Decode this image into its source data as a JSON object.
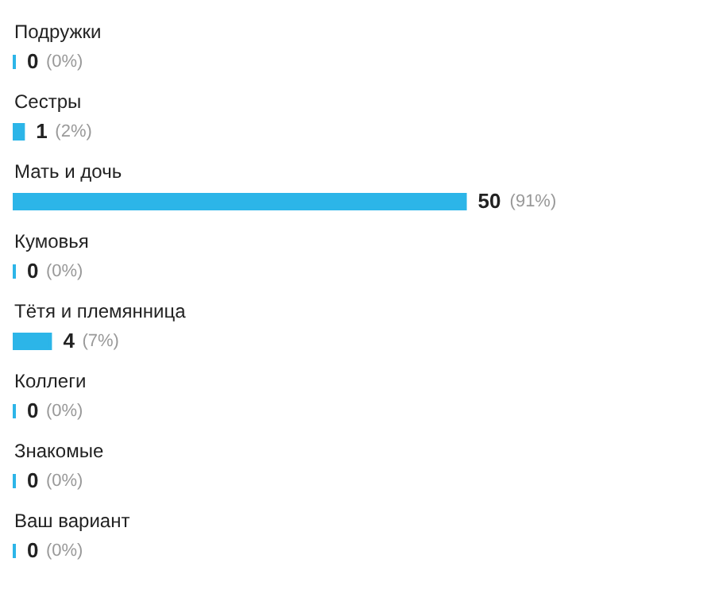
{
  "chart_data": {
    "type": "bar",
    "orientation": "horizontal",
    "categories": [
      "Подружки",
      "Сестры",
      "Мать и дочь",
      "Кумовья",
      "Тётя и племянница",
      "Коллеги",
      "Знакомые",
      "Ваш вариант"
    ],
    "values": [
      0,
      1,
      50,
      0,
      4,
      0,
      0,
      0
    ],
    "data_labels": true,
    "annotations": [
      {
        "text": "(0%)",
        "x": 0,
        "y": "Подружки"
      },
      {
        "text": "(2%)",
        "x": 1,
        "y": "Сестры"
      },
      {
        "text": "(91%)",
        "x": 50,
        "y": "Мать и дочь"
      },
      {
        "text": "(0%)",
        "x": 0,
        "y": "Кумовья"
      },
      {
        "text": "(7%)",
        "x": 4,
        "y": "Тётя и племянница"
      },
      {
        "text": "(0%)",
        "x": 0,
        "y": "Коллеги"
      },
      {
        "text": "(0%)",
        "x": 0,
        "y": "Знакомые"
      },
      {
        "text": "(0%)",
        "x": 0,
        "y": "Ваш вариант"
      }
    ],
    "color": "#2cb5e8"
  }
}
